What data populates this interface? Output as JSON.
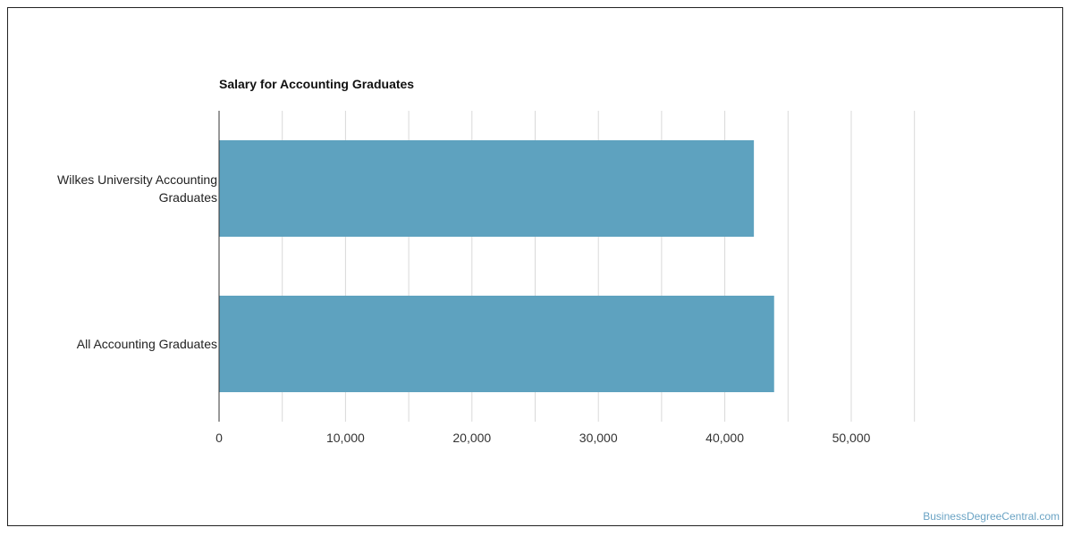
{
  "chart_data": {
    "type": "bar",
    "orientation": "horizontal",
    "title": "Salary for Accounting Graduates",
    "categories": [
      "Wilkes University Accounting Graduates",
      "All Accounting Graduates"
    ],
    "category_lines": [
      [
        "Wilkes University Accounting",
        "Graduates"
      ],
      [
        "All Accounting Graduates"
      ]
    ],
    "values": [
      42300,
      43900
    ],
    "xlim": [
      0,
      55000
    ],
    "xticks": [
      0,
      10000,
      20000,
      30000,
      40000,
      50000
    ],
    "xtick_labels": [
      "0",
      "10,000",
      "20,000",
      "30,000",
      "40,000",
      "50,000"
    ],
    "grid": true,
    "bar_color": "#5ea2bf",
    "gridline_color": "#d9d9d9"
  },
  "watermark": "BusinessDegreeCentral.com"
}
